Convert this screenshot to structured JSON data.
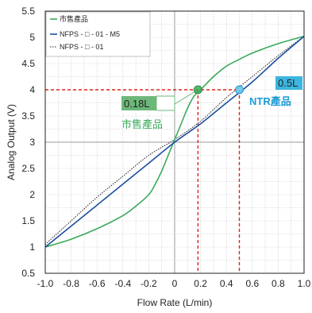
{
  "chart_data": {
    "type": "line",
    "xlabel": "Flow Rate (L/min)",
    "ylabel": "Analog Output (V)",
    "xlim": [
      -1.0,
      1.0
    ],
    "ylim": [
      0.5,
      5.5
    ],
    "xticks": [
      "-1.0",
      "-0.8",
      "-0.6",
      "-0.4",
      "-0.2",
      "0",
      "0.2",
      "0.4",
      "0.6",
      "0.8",
      "1.0"
    ],
    "yticks": [
      "0.5",
      "1",
      "1.5",
      "2",
      "2.5",
      "3",
      "3.5",
      "4",
      "4.5",
      "5",
      "5.5"
    ],
    "grid": true,
    "legend_position": "top-left",
    "series": [
      {
        "name": "市售產品",
        "color": "#3aaa5a",
        "style": "solid",
        "x": [
          -1.0,
          -0.8,
          -0.6,
          -0.4,
          -0.3,
          -0.2,
          -0.15,
          -0.1,
          -0.05,
          0.0,
          0.05,
          0.1,
          0.15,
          0.2,
          0.3,
          0.4,
          0.5,
          0.6,
          0.8,
          1.0
        ],
        "y": [
          1.0,
          1.15,
          1.35,
          1.6,
          1.78,
          2.0,
          2.2,
          2.45,
          2.75,
          3.05,
          3.35,
          3.65,
          3.88,
          4.0,
          4.25,
          4.45,
          4.58,
          4.7,
          4.88,
          5.02
        ]
      },
      {
        "name": "NFPS - □ - 01 - M5",
        "color": "#1a4fa0",
        "style": "solid",
        "x": [
          -1.0,
          -0.8,
          -0.6,
          -0.4,
          -0.2,
          0.0,
          0.2,
          0.4,
          0.6,
          0.8,
          1.0
        ],
        "y": [
          1.0,
          1.4,
          1.8,
          2.2,
          2.6,
          3.0,
          3.35,
          3.75,
          4.15,
          4.6,
          5.02
        ]
      },
      {
        "name": "NFPS - □ - 01",
        "color": "#231f20",
        "style": "dotted",
        "x": [
          -1.0,
          -0.8,
          -0.6,
          -0.4,
          -0.2,
          0.0,
          0.2,
          0.4,
          0.6,
          0.8,
          1.0
        ],
        "y": [
          1.05,
          1.5,
          1.95,
          2.35,
          2.75,
          3.05,
          3.4,
          3.85,
          4.25,
          4.65,
          5.02
        ]
      }
    ],
    "annotations": [
      {
        "box_text": "0.18L",
        "label": "市售產品",
        "x": 0.18,
        "y": 4.0,
        "color": "#3aaa5a",
        "box_color": "#6cb87a"
      },
      {
        "box_text": "0.5L",
        "label": "NTR產品",
        "x": 0.5,
        "y": 4.0,
        "color": "#1b9bd7",
        "box_color": "#3bb6e0"
      }
    ],
    "reference_line_y": 4.0,
    "reference_color": "#e2231a"
  }
}
